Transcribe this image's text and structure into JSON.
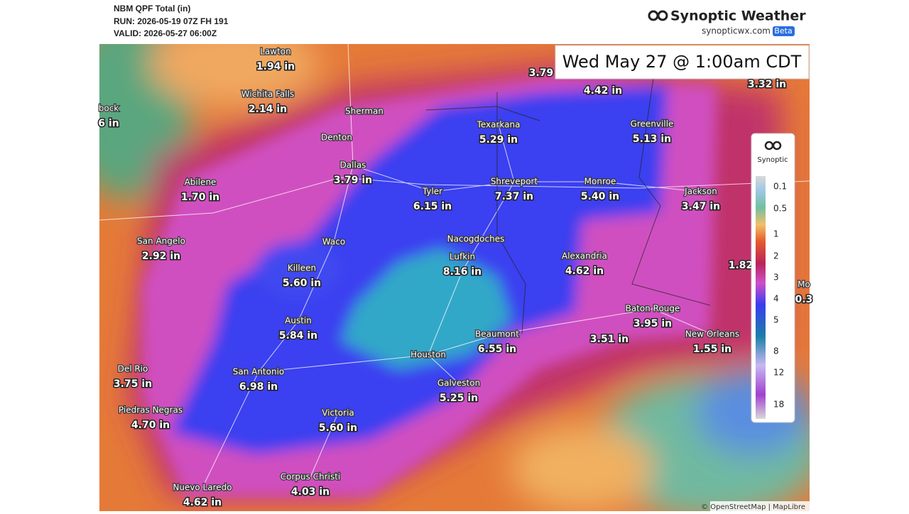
{
  "header": {
    "title": "NBM QPF Total (in)",
    "run": "RUN: 2026-05-19 07Z FH 191",
    "valid": "VALID: 2026-05-27 06:00Z"
  },
  "brand": {
    "name": "Synoptic Weather",
    "site": "synopticwx.com",
    "badge": "Beta"
  },
  "time_label": "Wed May 27 @ 1:00am CDT",
  "cities": [
    {
      "name": "Lawton",
      "value": "1.94 in"
    },
    {
      "name": "Wichita Falls",
      "value": "2.14 in"
    },
    {
      "name": "bock",
      "value": "6 in"
    },
    {
      "name": "Sherman"
    },
    {
      "name": "Denton"
    },
    {
      "name": "Dallas",
      "value": "3.79 in"
    },
    {
      "name": "Abilene",
      "value": "1.70 in"
    },
    {
      "name": "San Angelo",
      "value": "2.92 in"
    },
    {
      "name": "Waco"
    },
    {
      "name": "Killeen",
      "value": "5.60 in"
    },
    {
      "name": "Austin",
      "value": "5.84 in"
    },
    {
      "name": "San Antonio",
      "value": "6.98 in"
    },
    {
      "name": "Del Rio",
      "value": "3.75 in"
    },
    {
      "name": "Piedras Negras",
      "value": "4.70 in"
    },
    {
      "name": "Victoria",
      "value": "5.60 in"
    },
    {
      "name": "Corpus Christi",
      "value": "4.03 in"
    },
    {
      "name": "Nuevo Laredo",
      "value": "4.62 in"
    },
    {
      "name": "Houston"
    },
    {
      "name": "Galveston",
      "value": "5.25 in"
    },
    {
      "name": "Beaumont",
      "value": "6.55 in"
    },
    {
      "name": "Tyler",
      "value": "6.15 in"
    },
    {
      "name": "Nacogdoches"
    },
    {
      "name": "Lufkin",
      "value": "8.16 in"
    },
    {
      "name": "Shreveport",
      "value": "7.37 in"
    },
    {
      "name": "Texarkana",
      "value": "5.29 in"
    },
    {
      "name": "Monroe",
      "value": "5.40 in"
    },
    {
      "name": "Greenville",
      "value": "5.13 in"
    },
    {
      "name": "Alexandria",
      "value": "4.62 in"
    },
    {
      "name": "Baton Rouge",
      "value": "3.95 in"
    },
    {
      "name": "New Orleans",
      "value": "1.55 in"
    },
    {
      "name": "Jackson",
      "value": "3.47 in"
    },
    {
      "name": "Mo",
      "value": "0.3"
    }
  ],
  "unnamed_values": [
    "3.51 in",
    "3.79",
    "4.42 in",
    "3.32 in",
    "1.82"
  ],
  "legend": {
    "title": "Synoptic",
    "ticks": [
      "0.1",
      "0.5",
      "1",
      "2",
      "3",
      "4",
      "5",
      "8",
      "12",
      "18"
    ]
  },
  "attribution": "© OpenStreetMap | MapLibre"
}
